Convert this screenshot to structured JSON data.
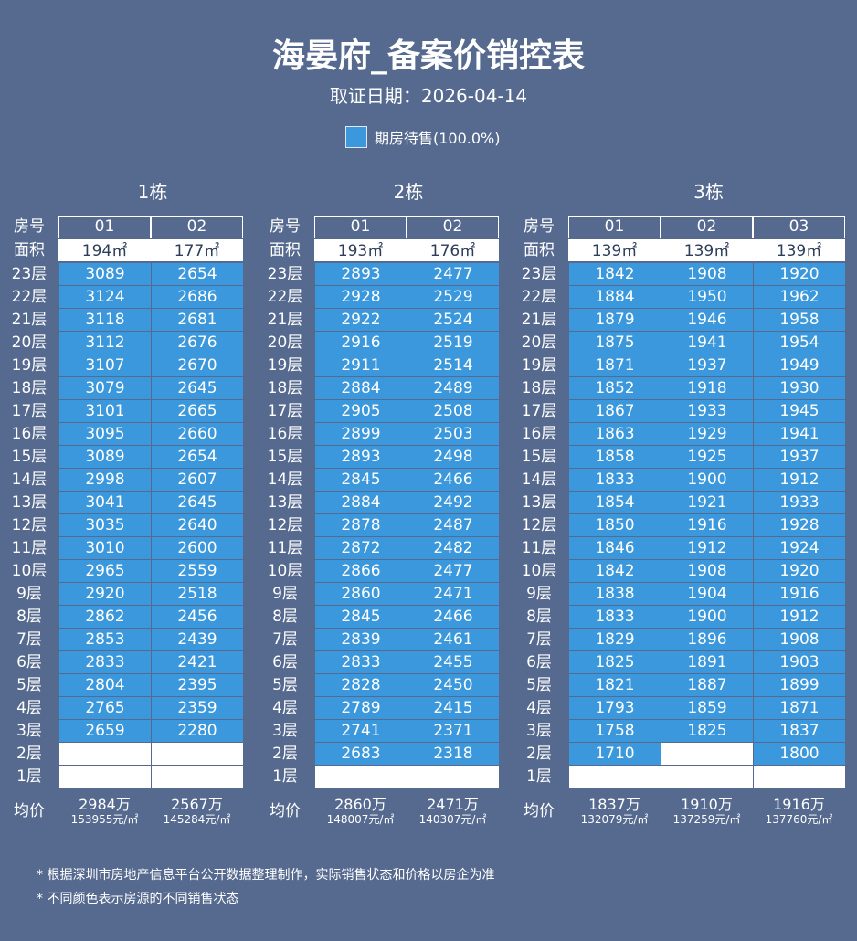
{
  "title": "海晏府_备案价销控表",
  "subtitle": "取证日期：2026-04-14",
  "legend": {
    "label": "期房待售(100.0%)",
    "color": "#3b98dd"
  },
  "row_labels": {
    "room": "房号",
    "area": "面积",
    "avg": "均价"
  },
  "floors": [
    "23层",
    "22层",
    "21层",
    "20层",
    "19层",
    "18层",
    "17层",
    "16层",
    "15层",
    "14层",
    "13层",
    "12层",
    "11层",
    "10层",
    "9层",
    "8层",
    "7层",
    "6层",
    "5层",
    "4层",
    "3层",
    "2层",
    "1层"
  ],
  "buildings": [
    {
      "name": "1栋",
      "units": [
        "01",
        "02"
      ],
      "areas": [
        "194㎡",
        "177㎡"
      ],
      "prices": [
        [
          "3089",
          "2654"
        ],
        [
          "3124",
          "2686"
        ],
        [
          "3118",
          "2681"
        ],
        [
          "3112",
          "2676"
        ],
        [
          "3107",
          "2670"
        ],
        [
          "3079",
          "2645"
        ],
        [
          "3101",
          "2665"
        ],
        [
          "3095",
          "2660"
        ],
        [
          "3089",
          "2654"
        ],
        [
          "2998",
          "2607"
        ],
        [
          "3041",
          "2645"
        ],
        [
          "3035",
          "2640"
        ],
        [
          "3010",
          "2600"
        ],
        [
          "2965",
          "2559"
        ],
        [
          "2920",
          "2518"
        ],
        [
          "2862",
          "2456"
        ],
        [
          "2853",
          "2439"
        ],
        [
          "2833",
          "2421"
        ],
        [
          "2804",
          "2395"
        ],
        [
          "2765",
          "2359"
        ],
        [
          "2659",
          "2280"
        ],
        [
          "",
          ""
        ],
        [
          "",
          ""
        ]
      ],
      "avg_total": [
        "2984万",
        "2567万"
      ],
      "avg_unit": [
        "153955元/㎡",
        "145284元/㎡"
      ]
    },
    {
      "name": "2栋",
      "units": [
        "01",
        "02"
      ],
      "areas": [
        "193㎡",
        "176㎡"
      ],
      "prices": [
        [
          "2893",
          "2477"
        ],
        [
          "2928",
          "2529"
        ],
        [
          "2922",
          "2524"
        ],
        [
          "2916",
          "2519"
        ],
        [
          "2911",
          "2514"
        ],
        [
          "2884",
          "2489"
        ],
        [
          "2905",
          "2508"
        ],
        [
          "2899",
          "2503"
        ],
        [
          "2893",
          "2498"
        ],
        [
          "2845",
          "2466"
        ],
        [
          "2884",
          "2492"
        ],
        [
          "2878",
          "2487"
        ],
        [
          "2872",
          "2482"
        ],
        [
          "2866",
          "2477"
        ],
        [
          "2860",
          "2471"
        ],
        [
          "2845",
          "2466"
        ],
        [
          "2839",
          "2461"
        ],
        [
          "2833",
          "2455"
        ],
        [
          "2828",
          "2450"
        ],
        [
          "2789",
          "2415"
        ],
        [
          "2741",
          "2371"
        ],
        [
          "2683",
          "2318"
        ],
        [
          "",
          ""
        ]
      ],
      "avg_total": [
        "2860万",
        "2471万"
      ],
      "avg_unit": [
        "148007元/㎡",
        "140307元/㎡"
      ]
    },
    {
      "name": "3栋",
      "units": [
        "01",
        "02",
        "03"
      ],
      "areas": [
        "139㎡",
        "139㎡",
        "139㎡"
      ],
      "prices": [
        [
          "1842",
          "1908",
          "1920"
        ],
        [
          "1884",
          "1950",
          "1962"
        ],
        [
          "1879",
          "1946",
          "1958"
        ],
        [
          "1875",
          "1941",
          "1954"
        ],
        [
          "1871",
          "1937",
          "1949"
        ],
        [
          "1852",
          "1918",
          "1930"
        ],
        [
          "1867",
          "1933",
          "1945"
        ],
        [
          "1863",
          "1929",
          "1941"
        ],
        [
          "1858",
          "1925",
          "1937"
        ],
        [
          "1833",
          "1900",
          "1912"
        ],
        [
          "1854",
          "1921",
          "1933"
        ],
        [
          "1850",
          "1916",
          "1928"
        ],
        [
          "1846",
          "1912",
          "1924"
        ],
        [
          "1842",
          "1908",
          "1920"
        ],
        [
          "1838",
          "1904",
          "1916"
        ],
        [
          "1833",
          "1900",
          "1912"
        ],
        [
          "1829",
          "1896",
          "1908"
        ],
        [
          "1825",
          "1891",
          "1903"
        ],
        [
          "1821",
          "1887",
          "1899"
        ],
        [
          "1793",
          "1859",
          "1871"
        ],
        [
          "1758",
          "1825",
          "1837"
        ],
        [
          "1710",
          "",
          "1800"
        ],
        [
          "",
          "",
          ""
        ]
      ],
      "avg_total": [
        "1837万",
        "1910万",
        "1916万"
      ],
      "avg_unit": [
        "132079元/㎡",
        "137259元/㎡",
        "137760元/㎡"
      ]
    }
  ],
  "footnotes": [
    "* 根据深圳市房地产信息平台公开数据整理制作，实际销售状态和价格以房企为准",
    "* 不同颜色表示房源的不同销售状态"
  ]
}
